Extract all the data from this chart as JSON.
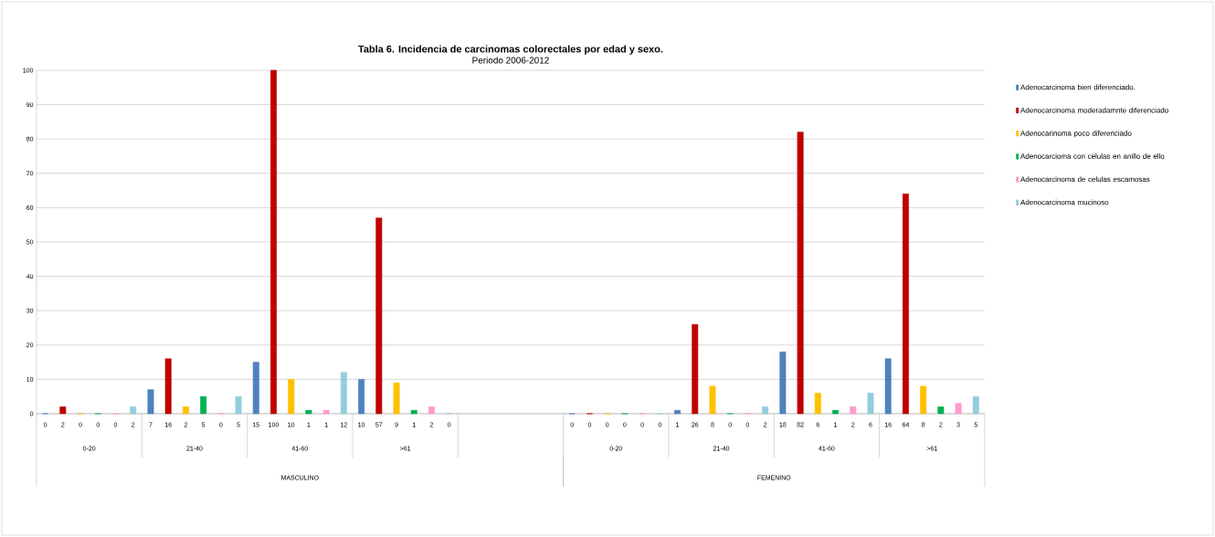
{
  "chart_data": {
    "type": "bar",
    "title": "Tabla 6. Incidencia de carcinomas colorectales por edad y sexo.",
    "subtitle": "Periodo 2006-2012",
    "categories": [
      "0-20",
      "21-40",
      "41-60",
      ">61",
      null,
      "0-20",
      "21-40",
      "41-60",
      ">61"
    ],
    "series": [
      {
        "name": "Adenocarcinoma bien diferenciado.",
        "color": "#4f81bd",
        "values": [
          0,
          7,
          15,
          10,
          null,
          0,
          1,
          18,
          16
        ]
      },
      {
        "name": "Adenocarcinoma moderadamnte diferenciado",
        "color": "#c00000",
        "values": [
          2,
          16,
          100,
          57,
          null,
          0,
          26,
          82,
          64
        ]
      },
      {
        "name": "Adenocarinoma poco diferenciado",
        "color": "#ffc000",
        "values": [
          0,
          2,
          10,
          9,
          null,
          0,
          8,
          6,
          8
        ]
      },
      {
        "name": "Adenocarcioma con celulas en anillo de ello",
        "color": "#00b050",
        "values": [
          0,
          5,
          1,
          1,
          null,
          0,
          0,
          1,
          2
        ]
      },
      {
        "name": "Adenocarcinoma de celulas escamosas",
        "color": "#ff99cc",
        "values": [
          0,
          0,
          1,
          2,
          null,
          0,
          0,
          2,
          3
        ]
      },
      {
        "name": "Adenocarcinoma mucinoso",
        "color": "#93cddd",
        "values": [
          2,
          5,
          12,
          0,
          null,
          0,
          2,
          6,
          5
        ]
      }
    ],
    "annotations": [
      "MASCULINO",
      "FEMENINO"
    ],
    "ylim": [
      0,
      100
    ],
    "yticks": [
      0,
      10,
      20,
      30,
      40,
      50,
      60,
      70,
      80,
      90,
      100
    ],
    "grid": "y",
    "legend": "right",
    "data_labels": true
  }
}
